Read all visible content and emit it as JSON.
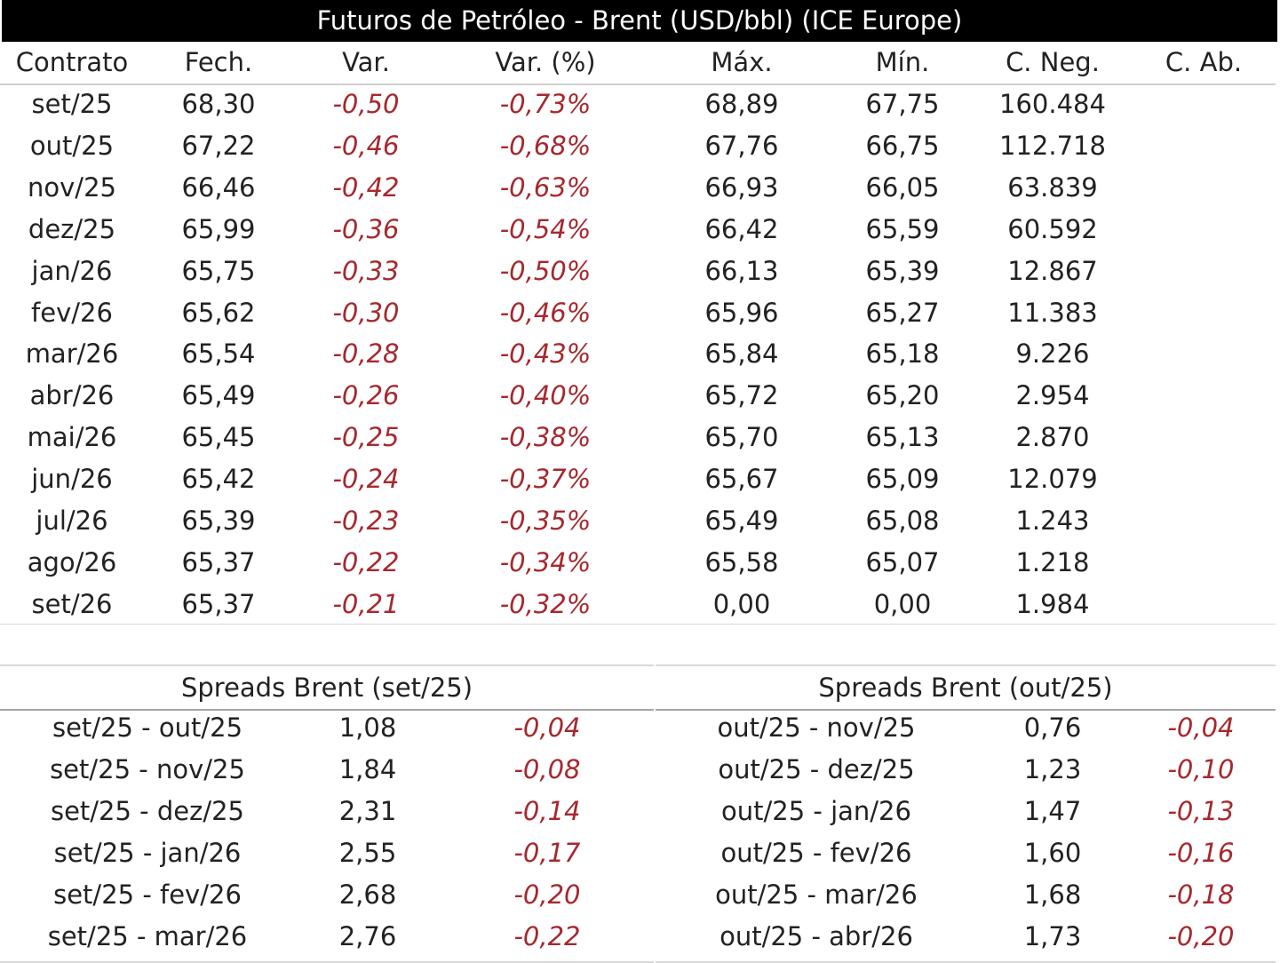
{
  "title": "Futuros de Petróleo - Brent (USD/bbl) (ICE Europe)",
  "colors": {
    "negative": "#a6282e",
    "header_bg": "#000000"
  },
  "columns": [
    "Contrato",
    "Fech.",
    "Var.",
    "Var. (%)",
    "Máx.",
    "Mín.",
    "C. Neg.",
    "C. Ab."
  ],
  "rows": [
    {
      "contrato": "set/25",
      "fech": "68,30",
      "var": "-0,50",
      "var_pct": "-0,73%",
      "max": "68,89",
      "min": "67,75",
      "neg": "160.484",
      "ab": ""
    },
    {
      "contrato": "out/25",
      "fech": "67,22",
      "var": "-0,46",
      "var_pct": "-0,68%",
      "max": "67,76",
      "min": "66,75",
      "neg": "112.718",
      "ab": ""
    },
    {
      "contrato": "nov/25",
      "fech": "66,46",
      "var": "-0,42",
      "var_pct": "-0,63%",
      "max": "66,93",
      "min": "66,05",
      "neg": "63.839",
      "ab": ""
    },
    {
      "contrato": "dez/25",
      "fech": "65,99",
      "var": "-0,36",
      "var_pct": "-0,54%",
      "max": "66,42",
      "min": "65,59",
      "neg": "60.592",
      "ab": ""
    },
    {
      "contrato": "jan/26",
      "fech": "65,75",
      "var": "-0,33",
      "var_pct": "-0,50%",
      "max": "66,13",
      "min": "65,39",
      "neg": "12.867",
      "ab": ""
    },
    {
      "contrato": "fev/26",
      "fech": "65,62",
      "var": "-0,30",
      "var_pct": "-0,46%",
      "max": "65,96",
      "min": "65,27",
      "neg": "11.383",
      "ab": ""
    },
    {
      "contrato": "mar/26",
      "fech": "65,54",
      "var": "-0,28",
      "var_pct": "-0,43%",
      "max": "65,84",
      "min": "65,18",
      "neg": "9.226",
      "ab": ""
    },
    {
      "contrato": "abr/26",
      "fech": "65,49",
      "var": "-0,26",
      "var_pct": "-0,40%",
      "max": "65,72",
      "min": "65,20",
      "neg": "2.954",
      "ab": ""
    },
    {
      "contrato": "mai/26",
      "fech": "65,45",
      "var": "-0,25",
      "var_pct": "-0,38%",
      "max": "65,70",
      "min": "65,13",
      "neg": "2.870",
      "ab": ""
    },
    {
      "contrato": "jun/26",
      "fech": "65,42",
      "var": "-0,24",
      "var_pct": "-0,37%",
      "max": "65,67",
      "min": "65,09",
      "neg": "12.079",
      "ab": ""
    },
    {
      "contrato": "jul/26",
      "fech": "65,39",
      "var": "-0,23",
      "var_pct": "-0,35%",
      "max": "65,49",
      "min": "65,08",
      "neg": "1.243",
      "ab": ""
    },
    {
      "contrato": "ago/26",
      "fech": "65,37",
      "var": "-0,22",
      "var_pct": "-0,34%",
      "max": "65,58",
      "min": "65,07",
      "neg": "1.218",
      "ab": ""
    },
    {
      "contrato": "set/26",
      "fech": "65,37",
      "var": "-0,21",
      "var_pct": "-0,32%",
      "max": "0,00",
      "min": "0,00",
      "neg": "1.984",
      "ab": ""
    }
  ],
  "spreads": [
    {
      "title": "Spreads Brent (set/25)",
      "rows": [
        {
          "pair": "set/25 - out/25",
          "value": "1,08",
          "change": "-0,04"
        },
        {
          "pair": "set/25 - nov/25",
          "value": "1,84",
          "change": "-0,08"
        },
        {
          "pair": "set/25 - dez/25",
          "value": "2,31",
          "change": "-0,14"
        },
        {
          "pair": "set/25 - jan/26",
          "value": "2,55",
          "change": "-0,17"
        },
        {
          "pair": "set/25 - fev/26",
          "value": "2,68",
          "change": "-0,20"
        },
        {
          "pair": "set/25 - mar/26",
          "value": "2,76",
          "change": "-0,22"
        }
      ]
    },
    {
      "title": "Spreads Brent (out/25)",
      "rows": [
        {
          "pair": "out/25 - nov/25",
          "value": "0,76",
          "change": "-0,04"
        },
        {
          "pair": "out/25 - dez/25",
          "value": "1,23",
          "change": "-0,10"
        },
        {
          "pair": "out/25 - jan/26",
          "value": "1,47",
          "change": "-0,13"
        },
        {
          "pair": "out/25 - fev/26",
          "value": "1,60",
          "change": "-0,16"
        },
        {
          "pair": "out/25 - mar/26",
          "value": "1,68",
          "change": "-0,18"
        },
        {
          "pair": "out/25 - abr/26",
          "value": "1,73",
          "change": "-0,20"
        }
      ]
    }
  ]
}
